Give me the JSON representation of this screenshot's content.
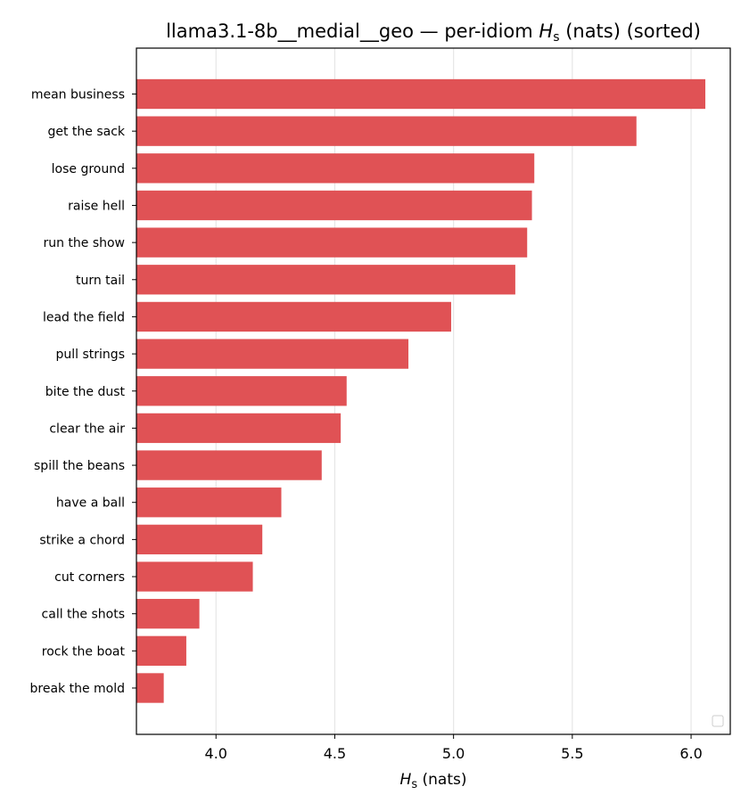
{
  "chart_data": {
    "type": "bar",
    "orientation": "horizontal",
    "title": "llama3.1-8b__medial__geo — per-idiom ",
    "title_symbol": "H",
    "title_subscript": "s",
    "title_suffix": " (nats) (sorted)",
    "xlabel_symbol": "H",
    "xlabel_subscript": "s",
    "xlabel_suffix": " (nats)",
    "xlim": [
      3.665,
      6.165
    ],
    "xticks": [
      "4.0",
      "4.5",
      "5.0",
      "5.5",
      "6.0"
    ],
    "xtick_values": [
      4.0,
      4.5,
      5.0,
      5.5,
      6.0
    ],
    "grid": "vertical",
    "legend": "lower-right (empty)",
    "bar_color": "#e05255",
    "categories": [
      "mean business",
      "get the sack",
      "lose ground",
      "raise hell",
      "run the show",
      "turn tail",
      "lead the field",
      "pull strings",
      "bite the dust",
      "clear the air",
      "spill the beans",
      "have a ball",
      "strike a chord",
      "cut corners",
      "call the shots",
      "rock the boat",
      "break the mold"
    ],
    "values": [
      6.06,
      5.77,
      5.34,
      5.33,
      5.31,
      5.26,
      4.99,
      4.81,
      4.55,
      4.525,
      4.445,
      4.275,
      4.195,
      4.155,
      3.93,
      3.875,
      3.78
    ]
  }
}
